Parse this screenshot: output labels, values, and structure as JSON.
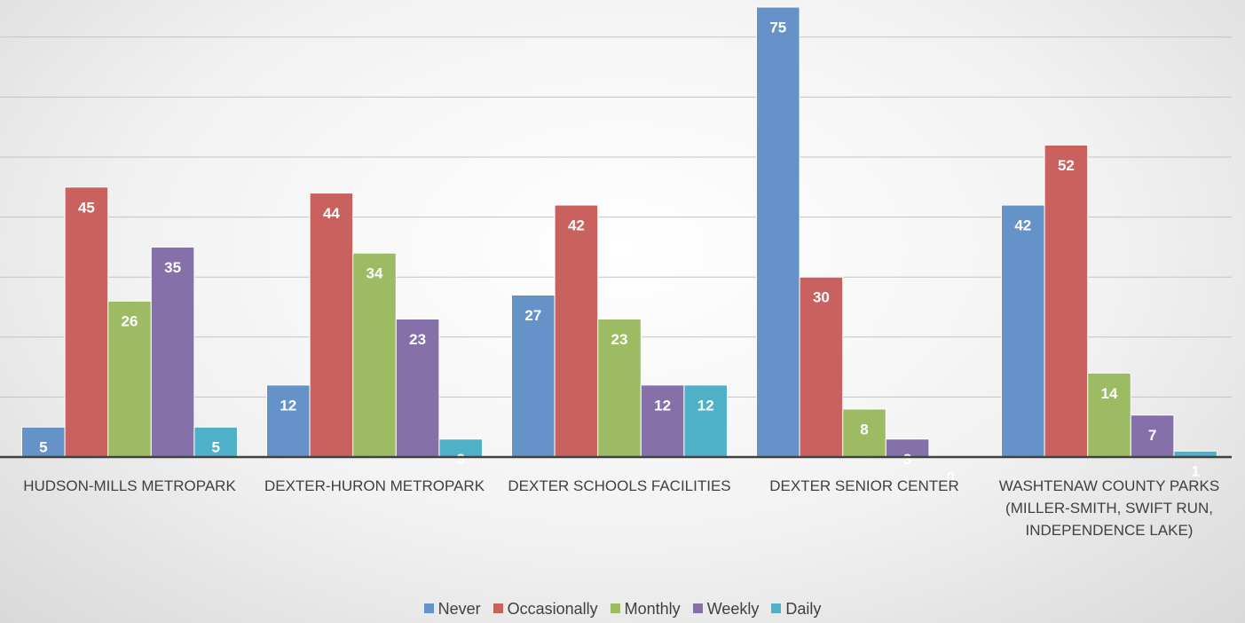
{
  "chart_data": {
    "type": "bar",
    "categories": [
      "HUDSON-MILLS METROPARK",
      "DEXTER-HURON METROPARK",
      "DEXTER SCHOOLS FACILITIES",
      "DEXTER SENIOR CENTER",
      "WASHTENAW COUNTY PARKS (MILLER-SMITH, SWIFT RUN, INDEPENDENCE LAKE)"
    ],
    "series": [
      {
        "name": "Never",
        "color": "#6592c8",
        "values": [
          5,
          12,
          27,
          75,
          42
        ]
      },
      {
        "name": "Occasionally",
        "color": "#c9625f",
        "values": [
          45,
          44,
          42,
          30,
          52
        ]
      },
      {
        "name": "Monthly",
        "color": "#9cbb63",
        "values": [
          26,
          34,
          23,
          8,
          14
        ]
      },
      {
        "name": "Weekly",
        "color": "#8670aa",
        "values": [
          35,
          23,
          12,
          3,
          7
        ]
      },
      {
        "name": "Daily",
        "color": "#4fb1c8",
        "values": [
          5,
          3,
          12,
          0,
          1
        ]
      }
    ],
    "ylim": [
      0,
      75
    ],
    "yticks": [
      0,
      10,
      20,
      30,
      40,
      50,
      60,
      70
    ],
    "grid": true
  }
}
